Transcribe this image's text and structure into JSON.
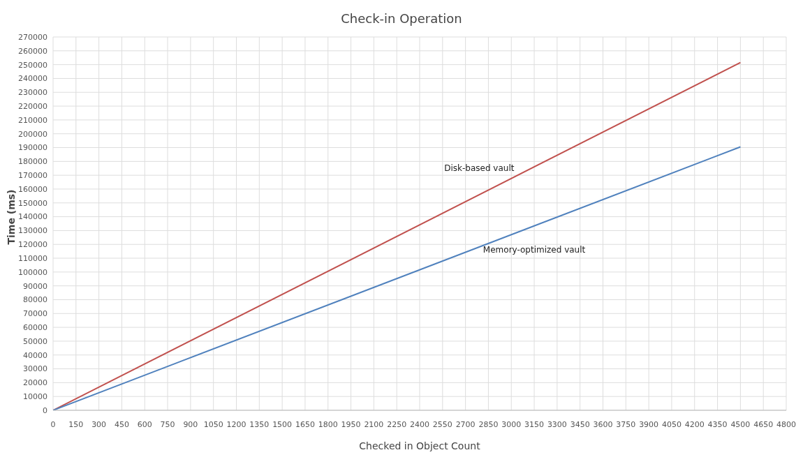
{
  "chart_data": {
    "type": "line",
    "title": "Check-in Operation",
    "xlabel": "Checked in Object Count",
    "ylabel": "Time (ms)",
    "x": [
      0,
      4500
    ],
    "series": [
      {
        "name": "Disk-based vault",
        "color": "#c0504d",
        "values": [
          0,
          251500
        ]
      },
      {
        "name": "Memory-optimized vault",
        "color": "#4f81bd",
        "values": [
          0,
          190500
        ]
      }
    ],
    "xlim": [
      0,
      4800
    ],
    "xticks": [
      0,
      150,
      300,
      450,
      600,
      750,
      900,
      1050,
      1200,
      1350,
      1500,
      1650,
      1800,
      1950,
      2100,
      2250,
      2400,
      2550,
      2700,
      2850,
      3000,
      3150,
      3300,
      3450,
      3600,
      3750,
      3900,
      4050,
      4200,
      4350,
      4500,
      4650,
      4800
    ],
    "ylim": [
      0,
      270000
    ],
    "yticks": [
      0,
      10000,
      20000,
      30000,
      40000,
      50000,
      60000,
      70000,
      80000,
      90000,
      100000,
      110000,
      120000,
      130000,
      140000,
      150000,
      160000,
      170000,
      180000,
      190000,
      200000,
      210000,
      220000,
      230000,
      240000,
      250000,
      260000,
      270000
    ],
    "grid": true,
    "legend": false,
    "marker": "none",
    "line_style": "solid"
  }
}
